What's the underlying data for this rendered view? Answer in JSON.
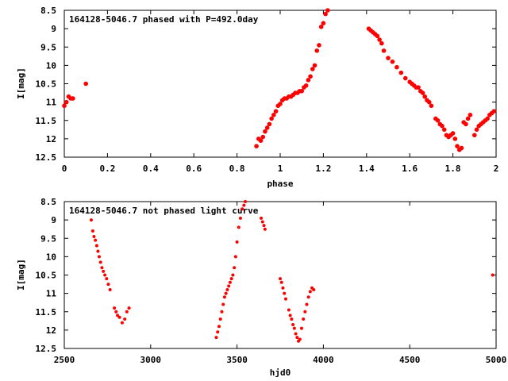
{
  "chart_data": [
    {
      "type": "scatter",
      "title": "164128-5046.7 phased with P=492.0day",
      "xlabel": "phase",
      "ylabel": "I[mag]",
      "xlim": [
        0,
        2
      ],
      "ylim": [
        12.5,
        8.5
      ],
      "y_inverted": true,
      "grid": false,
      "marker_color": "#ff0000",
      "xticks": [
        0,
        0.2,
        0.4,
        0.6,
        0.8,
        1,
        1.2,
        1.4,
        1.6,
        1.8,
        2
      ],
      "xtick_labels": [
        "0",
        "0.2",
        "0.4",
        "0.6",
        "0.8",
        "1",
        "1.2",
        "1.4",
        "1.6",
        "1.8",
        "2"
      ],
      "yticks": [
        8.5,
        9,
        9.5,
        10,
        10.5,
        11,
        11.5,
        12,
        12.5
      ],
      "ytick_labels": [
        "8.5",
        "9",
        "9.5",
        "10",
        "10.5",
        "11",
        "11.5",
        "12",
        "12.5"
      ],
      "series": [
        {
          "x": [
            0.0,
            0.01,
            0.02,
            0.03,
            0.04,
            0.1,
            0.89,
            0.9,
            0.91,
            0.92,
            0.93,
            0.94,
            0.95,
            0.96,
            0.97,
            0.98,
            0.99,
            1.0,
            1.01,
            1.02,
            1.03,
            1.04,
            1.05,
            1.06,
            1.07,
            1.08,
            1.09,
            1.1,
            1.11,
            1.12,
            1.13,
            1.14,
            1.15,
            1.16,
            1.17,
            1.18,
            1.19,
            1.2,
            1.21,
            1.22,
            1.41,
            1.42,
            1.43,
            1.44,
            1.45,
            1.46,
            1.47,
            1.48,
            1.5,
            1.52,
            1.54,
            1.56,
            1.58,
            1.6,
            1.61,
            1.62,
            1.63,
            1.64,
            1.65,
            1.66,
            1.67,
            1.68,
            1.69,
            1.7,
            1.72,
            1.73,
            1.74,
            1.75,
            1.76,
            1.77,
            1.78,
            1.79,
            1.8,
            1.81,
            1.82,
            1.83,
            1.84,
            1.85,
            1.86,
            1.87,
            1.88,
            1.9,
            1.91,
            1.92,
            1.93,
            1.94,
            1.95,
            1.96,
            1.97,
            1.98,
            1.99
          ],
          "y": [
            11.1,
            11.0,
            10.85,
            10.9,
            10.9,
            10.5,
            12.2,
            12.0,
            12.05,
            11.95,
            11.8,
            11.7,
            11.6,
            11.45,
            11.35,
            11.25,
            11.1,
            11.05,
            10.95,
            10.9,
            10.9,
            10.85,
            10.85,
            10.8,
            10.75,
            10.75,
            10.7,
            10.7,
            10.6,
            10.55,
            10.4,
            10.3,
            10.1,
            10.0,
            9.6,
            9.45,
            8.95,
            8.85,
            8.6,
            8.5,
            9.0,
            9.05,
            9.1,
            9.15,
            9.2,
            9.3,
            9.4,
            9.6,
            9.8,
            9.9,
            10.05,
            10.2,
            10.35,
            10.45,
            10.5,
            10.55,
            10.6,
            10.6,
            10.7,
            10.75,
            10.85,
            10.95,
            11.0,
            11.1,
            11.45,
            11.5,
            11.6,
            11.65,
            11.75,
            11.9,
            11.95,
            11.9,
            11.85,
            12.0,
            12.2,
            12.3,
            12.25,
            11.55,
            11.6,
            11.45,
            11.35,
            11.9,
            11.75,
            11.65,
            11.6,
            11.55,
            11.5,
            11.45,
            11.35,
            11.3,
            11.25
          ]
        }
      ]
    },
    {
      "type": "scatter",
      "title": "164128-5046.7 not phased light curve",
      "xlabel": "hjd0",
      "ylabel": "I[mag]",
      "xlim": [
        2500,
        5000
      ],
      "ylim": [
        12.5,
        8.5
      ],
      "y_inverted": true,
      "grid": false,
      "marker_color": "#ff0000",
      "xticks": [
        2500,
        3000,
        3500,
        4000,
        4500,
        5000
      ],
      "xtick_labels": [
        "2500",
        "3000",
        "3500",
        "4000",
        "4500",
        "5000"
      ],
      "yticks": [
        8.5,
        9,
        9.5,
        10,
        10.5,
        11,
        11.5,
        12,
        12.5
      ],
      "ytick_labels": [
        "8.5",
        "9",
        "9.5",
        "10",
        "10.5",
        "11",
        "11.5",
        "12",
        "12.5"
      ],
      "series": [
        {
          "x": [
            2656,
            2665,
            2672,
            2680,
            2688,
            2695,
            2702,
            2710,
            2718,
            2726,
            2735,
            2745,
            2755,
            2765,
            2790,
            2800,
            2808,
            2820,
            2835,
            2850,
            2862,
            2875,
            3380,
            3388,
            3396,
            3404,
            3412,
            3420,
            3428,
            3436,
            3444,
            3452,
            3460,
            3468,
            3476,
            3484,
            3492,
            3500,
            3510,
            3520,
            3530,
            3540,
            3548,
            3640,
            3648,
            3656,
            3662,
            3750,
            3758,
            3766,
            3774,
            3782,
            3800,
            3808,
            3816,
            3824,
            3832,
            3840,
            3848,
            3856,
            3864,
            3874,
            3884,
            3894,
            3904,
            3914,
            3924,
            3934,
            3944,
            4980
          ],
          "y": [
            9.0,
            9.3,
            9.45,
            9.55,
            9.7,
            9.85,
            10.0,
            10.15,
            10.3,
            10.4,
            10.5,
            10.6,
            10.75,
            10.9,
            11.4,
            11.5,
            11.6,
            11.65,
            11.8,
            11.7,
            11.5,
            11.4,
            12.2,
            12.05,
            11.9,
            11.7,
            11.5,
            11.3,
            11.1,
            11.0,
            10.9,
            10.8,
            10.7,
            10.6,
            10.5,
            10.3,
            10.0,
            9.6,
            9.2,
            8.95,
            8.7,
            8.6,
            8.5,
            8.95,
            9.05,
            9.15,
            9.25,
            10.6,
            10.7,
            10.85,
            11.0,
            11.15,
            11.45,
            11.6,
            11.7,
            11.85,
            11.95,
            12.1,
            12.2,
            12.3,
            12.25,
            11.95,
            11.7,
            11.5,
            11.3,
            11.1,
            10.95,
            10.85,
            10.9,
            10.5
          ]
        }
      ]
    }
  ]
}
